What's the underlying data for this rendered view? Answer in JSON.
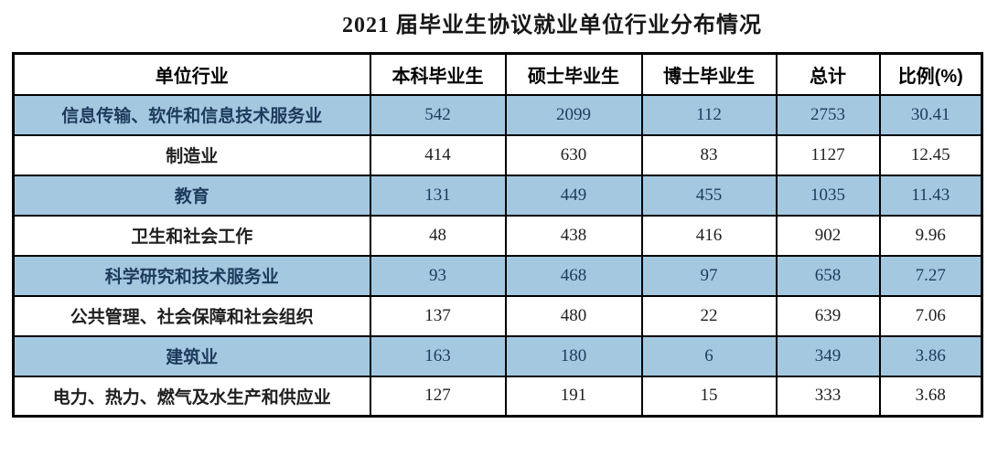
{
  "title": "2021 届毕业生协议就业单位行业分布情况",
  "table": {
    "headers": [
      "单位行业",
      "本科毕业生",
      "硕士毕业生",
      "博士毕业生",
      "总计",
      "比例(%)"
    ],
    "rows": [
      [
        "信息传输、软件和信息技术服务业",
        "542",
        "2099",
        "112",
        "2753",
        "30.41"
      ],
      [
        "制造业",
        "414",
        "630",
        "83",
        "1127",
        "12.45"
      ],
      [
        "教育",
        "131",
        "449",
        "455",
        "1035",
        "11.43"
      ],
      [
        "卫生和社会工作",
        "48",
        "438",
        "416",
        "902",
        "9.96"
      ],
      [
        "科学研究和技术服务业",
        "93",
        "468",
        "97",
        "658",
        "7.27"
      ],
      [
        "公共管理、社会保障和社会组织",
        "137",
        "480",
        "22",
        "639",
        "7.06"
      ],
      [
        "建筑业",
        "163",
        "180",
        "6",
        "349",
        "3.86"
      ],
      [
        "电力、热力、燃气及水生产和供应业",
        "127",
        "191",
        "15",
        "333",
        "3.68"
      ]
    ],
    "highlighted_row_indices": [
      0,
      2,
      4,
      6
    ]
  },
  "colors": {
    "row_highlight": "#a5c8e1",
    "border": "#000000",
    "highlight_text": "#1d3b5d",
    "body_text": "#1f1f1f"
  }
}
